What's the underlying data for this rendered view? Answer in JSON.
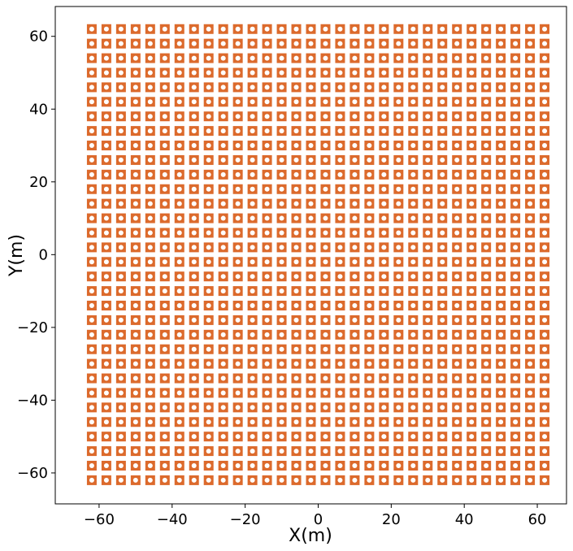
{
  "chart_data": {
    "type": "scatter",
    "x_label": "X(m)",
    "y_label": "Y(m)",
    "x": [
      -62,
      -58,
      -54,
      -50,
      -46,
      -42,
      -38,
      -34,
      -30,
      -26,
      -22,
      -18,
      -14,
      -10,
      -6,
      -2,
      2,
      6,
      10,
      14,
      18,
      22,
      26,
      30,
      34,
      38,
      42,
      46,
      50,
      54,
      58,
      62
    ],
    "y": [
      -62,
      -58,
      -54,
      -50,
      -46,
      -42,
      -38,
      -34,
      -30,
      -26,
      -22,
      -18,
      -14,
      -10,
      -6,
      -2,
      2,
      6,
      10,
      14,
      18,
      22,
      26,
      30,
      34,
      38,
      42,
      46,
      50,
      54,
      58,
      62
    ],
    "grid_points": true,
    "color": "#dc6a2c",
    "xlim": [
      -72,
      68
    ],
    "ylim": [
      -68.5,
      68.2
    ],
    "xticks": [
      {
        "value": -60,
        "label": "−60"
      },
      {
        "value": -40,
        "label": "−40"
      },
      {
        "value": -20,
        "label": "−20"
      },
      0,
      20,
      40,
      60
    ],
    "yticks": [
      {
        "value": -60,
        "label": "−60"
      },
      {
        "value": -40,
        "label": "−40"
      },
      {
        "value": -20,
        "label": "−20"
      },
      0,
      20,
      40,
      60
    ]
  }
}
